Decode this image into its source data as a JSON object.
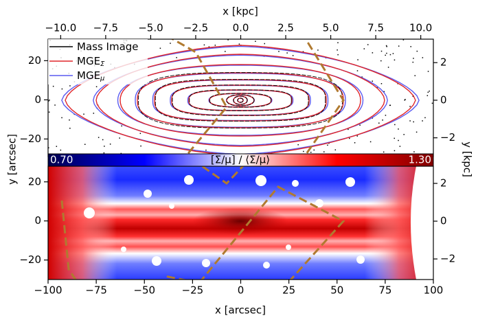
{
  "chart_data": [
    {
      "type": "contour",
      "x2label": "x [kpc]",
      "x2lim": [
        -10.7,
        10.7
      ],
      "x2ticks": [
        {
          "value": -10,
          "label": "−10.0"
        },
        {
          "value": -7.5,
          "label": "−7.5"
        },
        {
          "value": -5,
          "label": "−5.0"
        },
        {
          "value": -2.5,
          "label": "−2.5"
        },
        {
          "value": 0,
          "label": "0.0"
        },
        2.5,
        {
          "value": 5,
          "label": "5.0"
        },
        7.5,
        {
          "value": 10,
          "label": "10.0"
        }
      ],
      "xlim": [
        -100,
        100
      ],
      "xticks": [
        -100,
        -75,
        -50,
        -25,
        0,
        25,
        50,
        75,
        100
      ],
      "ylim": [
        -29,
        31
      ],
      "yticks": [
        {
          "value": -20,
          "label": "−20"
        },
        0,
        20
      ],
      "y2lim": [
        -3.0,
        3.25
      ],
      "y2ticks": [
        {
          "value": -2,
          "label": "−2"
        },
        0,
        2
      ],
      "series": [
        {
          "name": "Mass Image",
          "color": "#000000"
        },
        {
          "name": "MGE",
          "subscript": "Σ",
          "color": "#e0262a"
        },
        {
          "name": "MGE",
          "subscript": "μ",
          "color": "#5a5af0"
        }
      ]
    },
    {
      "type": "image",
      "xlabel": "x [arcsec]",
      "ylabel": "y [arcsec]",
      "y2label": "y [kpc]",
      "xlim": [
        -100,
        100
      ],
      "xticks": [
        {
          "value": -100,
          "label": "−100"
        },
        {
          "value": -75,
          "label": "−75"
        },
        {
          "value": -50,
          "label": "−50"
        },
        {
          "value": -25,
          "label": "−25"
        },
        0,
        25,
        50,
        75,
        100
      ],
      "ylim": [
        -30,
        28
      ],
      "yticks": [
        {
          "value": -20,
          "label": "−20"
        },
        0,
        20
      ],
      "y2lim": [
        -3.09,
        2.91
      ],
      "y2ticks": [
        {
          "value": -2,
          "label": "−2"
        },
        0,
        2
      ],
      "colorbar": {
        "label": "[Σ/μ] / ⟨Σ/μ⟩",
        "lim": [
          0.7,
          1.3
        ],
        "ticks": [
          {
            "value": 0.7,
            "label": "0.70"
          },
          {
            "value": 1.3,
            "label": "1.30"
          }
        ],
        "colormap": [
          "#00004c",
          "#0000ff",
          "#ffffff",
          "#ff0000",
          "#800000"
        ]
      }
    }
  ]
}
